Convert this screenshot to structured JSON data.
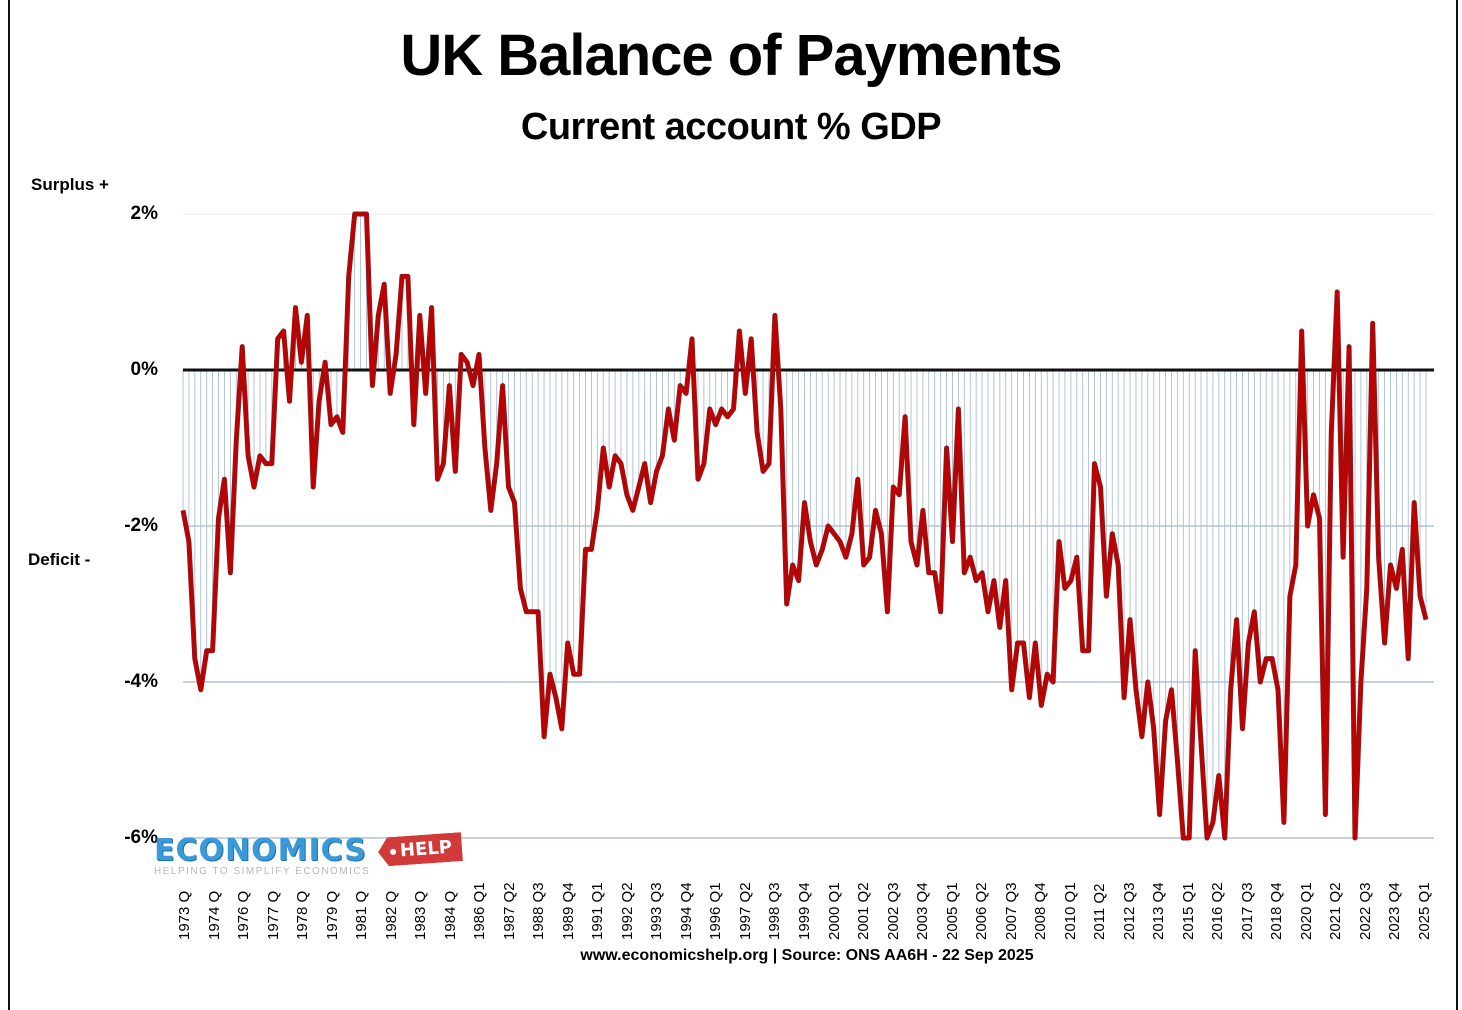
{
  "header": {
    "title": "UK Balance of Payments",
    "subtitle": "Current account % GDP"
  },
  "labels": {
    "surplus": "Surplus +",
    "deficit": "Deficit -"
  },
  "footer": {
    "source": "www.economicshelp.org | Source: ONS AA6H - 22 Sep 2025"
  },
  "logo": {
    "main": "ECONOMICS",
    "tag": "HELP",
    "tagline": "HELPING TO SIMPLIFY ECONOMICS"
  },
  "colors": {
    "line": "#c00000",
    "line_outline": "#8a1a1a",
    "zero_line": "#111111",
    "gridline": "#b4c4d4",
    "fill_stripe": "#a9bfd3",
    "logo_blue": "#3a9ad9",
    "logo_red": "#d23a3a"
  },
  "chart_data": {
    "type": "line",
    "title": "UK Balance of Payments",
    "subtitle": "Current account % GDP",
    "xlabel": "",
    "ylabel": "",
    "ylim": [
      -6,
      2
    ],
    "yticks": [
      "2%",
      "0%",
      "-2%",
      "-4%",
      "-6%"
    ],
    "ytick_values": [
      2,
      0,
      -2,
      -4,
      -6
    ],
    "grid": true,
    "legend": "none",
    "x_start": "1973 Q1",
    "x_end": "2025 Q1",
    "frequency": "quarterly",
    "x_tick_labels": [
      "1973 Q",
      "1974 Q",
      "1976 Q",
      "1977 Q",
      "1978 Q",
      "1979 Q",
      "1981 Q",
      "1982 Q",
      "1983 Q",
      "1984 Q",
      "1986 Q1",
      "1987 Q2",
      "1988 Q3",
      "1989 Q4",
      "1991 Q1",
      "1992 Q2",
      "1993 Q3",
      "1994 Q4",
      "1996 Q1",
      "1997 Q2",
      "1998 Q3",
      "1999 Q4",
      "2000 Q1",
      "2001 Q2",
      "2002 Q3",
      "2003 Q4",
      "2005 Q1",
      "2006 Q2",
      "2007 Q3",
      "2008 Q4",
      "2010 Q1",
      "2011 Q2",
      "2012 Q3",
      "2013 Q4",
      "2015 Q1",
      "2016 Q2",
      "2017 Q3",
      "2018 Q4",
      "2020 Q1",
      "2021 Q2",
      "2022 Q3",
      "2023 Q4",
      "2025 Q1"
    ],
    "series": [
      {
        "name": "Current account % GDP",
        "values": [
          -1.8,
          -2.2,
          -3.7,
          -4.1,
          -3.6,
          -3.6,
          -1.9,
          -1.4,
          -2.6,
          -0.9,
          0.3,
          -1.1,
          -1.5,
          -1.1,
          -1.2,
          -1.2,
          0.4,
          0.5,
          -0.4,
          0.8,
          0.1,
          0.7,
          -1.5,
          -0.4,
          0.1,
          -0.7,
          -0.6,
          -0.8,
          1.2,
          2.0,
          2.0,
          2.0,
          -0.2,
          0.7,
          1.1,
          -0.3,
          0.2,
          1.2,
          1.2,
          -0.7,
          0.7,
          -0.3,
          0.8,
          -1.4,
          -1.2,
          -0.2,
          -1.3,
          0.2,
          0.1,
          -0.2,
          0.2,
          -1.0,
          -1.8,
          -1.2,
          -0.2,
          -1.5,
          -1.7,
          -2.8,
          -3.1,
          -3.1,
          -3.1,
          -4.7,
          -3.9,
          -4.2,
          -4.6,
          -3.5,
          -3.9,
          -3.9,
          -2.3,
          -2.3,
          -1.8,
          -1.0,
          -1.5,
          -1.1,
          -1.2,
          -1.6,
          -1.8,
          -1.5,
          -1.2,
          -1.7,
          -1.3,
          -1.1,
          -0.5,
          -0.9,
          -0.2,
          -0.3,
          0.4,
          -1.4,
          -1.2,
          -0.5,
          -0.7,
          -0.5,
          -0.6,
          -0.5,
          0.5,
          -0.3,
          0.4,
          -0.8,
          -1.3,
          -1.2,
          0.7,
          -0.5,
          -3.0,
          -2.5,
          -2.7,
          -1.7,
          -2.2,
          -2.5,
          -2.3,
          -2.0,
          -2.1,
          -2.2,
          -2.4,
          -2.1,
          -1.4,
          -2.5,
          -2.4,
          -1.8,
          -2.1,
          -3.1,
          -1.5,
          -1.6,
          -0.6,
          -2.2,
          -2.5,
          -1.8,
          -2.6,
          -2.6,
          -3.1,
          -1.0,
          -2.2,
          -0.5,
          -2.6,
          -2.4,
          -2.7,
          -2.6,
          -3.1,
          -2.7,
          -3.3,
          -2.7,
          -4.1,
          -3.5,
          -3.5,
          -4.2,
          -3.5,
          -4.3,
          -3.9,
          -4.0,
          -2.2,
          -2.8,
          -2.7,
          -2.4,
          -3.6,
          -3.6,
          -1.2,
          -1.5,
          -2.9,
          -2.1,
          -2.5,
          -4.2,
          -3.2,
          -4.1,
          -4.7,
          -4.0,
          -4.6,
          -5.7,
          -4.5,
          -4.1,
          -5.0,
          -6.0,
          -6.0,
          -3.6,
          -4.8,
          -6.0,
          -5.8,
          -5.2,
          -6.0,
          -4.1,
          -3.2,
          -4.6,
          -3.5,
          -3.1,
          -4.0,
          -3.7,
          -3.7,
          -4.1,
          -5.8,
          -2.9,
          -2.5,
          0.5,
          -2.0,
          -1.6,
          -1.9,
          -5.7,
          -0.8,
          1.0,
          -2.4,
          0.3,
          -6.0,
          -4.0,
          -2.8,
          0.6,
          -2.4,
          -3.5,
          -2.5,
          -2.8,
          -2.3,
          -3.7,
          -1.7,
          -2.9,
          -3.2
        ]
      }
    ],
    "annotations": [
      "Surplus +",
      "Deficit -"
    ]
  }
}
